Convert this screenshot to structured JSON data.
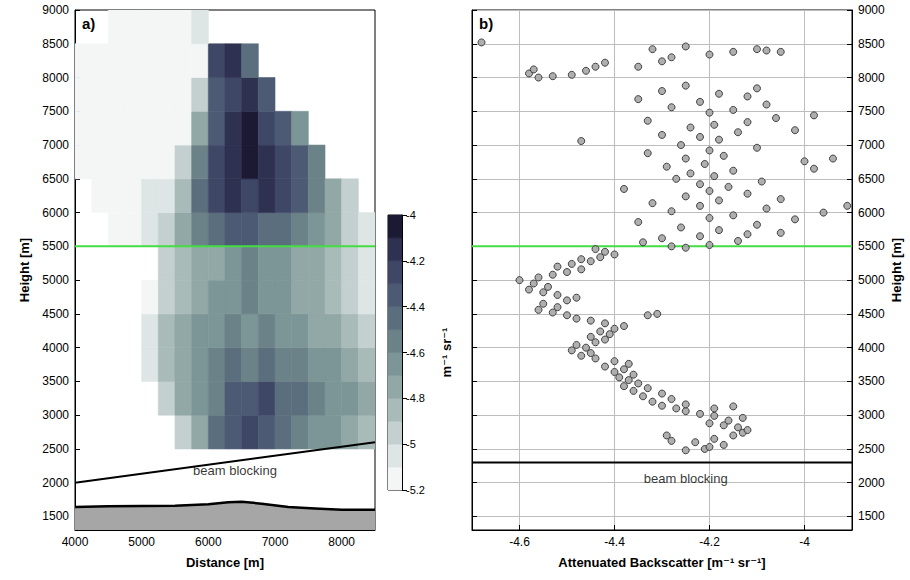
{
  "chart_data": [
    {
      "type": "heatmap",
      "panel_label": "a)",
      "x_label": "Distance [m]",
      "y_label": "Height [m]",
      "xlim": [
        4000,
        8500
      ],
      "xticks": [
        4000,
        5000,
        6000,
        7000,
        8000
      ],
      "ylim": [
        1300,
        9000
      ],
      "yticks": [
        1500,
        2000,
        2500,
        3000,
        3500,
        4000,
        4500,
        5000,
        5500,
        6000,
        6500,
        7000,
        7500,
        8000,
        8500,
        9000
      ],
      "grid": false,
      "cells": {
        "x_edges": [
          4000,
          4250,
          4500,
          4750,
          5000,
          5250,
          5500,
          5750,
          6000,
          6250,
          6500,
          6750,
          7000,
          7250,
          7500,
          7750,
          8000,
          8250,
          8500
        ],
        "y_edges": [
          2500,
          3000,
          3500,
          4000,
          4500,
          5000,
          5500,
          6000,
          6500,
          7000,
          7500,
          8000,
          8500,
          9000
        ],
        "values": [
          [
            null,
            null,
            null,
            null,
            null,
            null,
            -5.0,
            -4.8,
            -4.5,
            -4.4,
            -4.3,
            -4.4,
            -4.5,
            -4.6,
            -4.7,
            -4.7,
            -4.8,
            -4.9
          ],
          [
            null,
            null,
            null,
            null,
            null,
            -5.0,
            -4.8,
            -4.7,
            -4.6,
            -4.4,
            -4.4,
            -4.3,
            -4.5,
            -4.5,
            -4.6,
            -4.7,
            -4.7,
            -4.8
          ],
          [
            null,
            null,
            null,
            null,
            -5.1,
            -4.9,
            -4.8,
            -4.7,
            -4.6,
            -4.5,
            -4.6,
            -4.5,
            -4.6,
            -4.6,
            -4.7,
            -4.7,
            -4.8,
            -4.9
          ],
          [
            null,
            null,
            null,
            null,
            -5.1,
            -4.9,
            -4.8,
            -4.7,
            -4.7,
            -4.6,
            -4.7,
            -4.6,
            -4.7,
            -4.7,
            -4.8,
            -4.8,
            -4.9,
            -5.0
          ],
          [
            null,
            null,
            null,
            null,
            -5.2,
            -5.0,
            -4.9,
            -4.8,
            -4.7,
            -4.7,
            -4.6,
            -4.7,
            -4.7,
            -4.8,
            -4.8,
            -4.9,
            -5.0,
            -5.1
          ],
          [
            null,
            null,
            null,
            null,
            null,
            -5.0,
            -4.9,
            -4.8,
            -4.8,
            -4.7,
            -4.6,
            -4.7,
            -4.7,
            -4.8,
            -4.8,
            -4.9,
            -5.0,
            -5.1
          ],
          [
            null,
            null,
            -5.2,
            -5.2,
            -5.1,
            -5.0,
            -4.8,
            -4.6,
            -4.5,
            -4.4,
            -4.4,
            -4.5,
            -4.5,
            -4.6,
            -4.7,
            -4.8,
            -5.0,
            -5.1
          ],
          [
            null,
            -5.2,
            -5.2,
            -5.2,
            -5.1,
            -5.1,
            -4.9,
            -4.5,
            -4.3,
            -4.2,
            -4.3,
            -4.2,
            -4.3,
            -4.4,
            -4.6,
            -4.8,
            -5.0,
            null
          ],
          [
            -5.2,
            -5.2,
            -5.2,
            -5.2,
            -5.2,
            -5.2,
            -5.0,
            -4.6,
            -4.3,
            -4.2,
            -4.1,
            -4.2,
            -4.3,
            -4.4,
            -4.6,
            null,
            null,
            null
          ],
          [
            -5.2,
            -5.2,
            -5.2,
            -5.2,
            -5.2,
            -5.2,
            -5.2,
            -4.8,
            -4.4,
            -4.2,
            -4.1,
            -4.3,
            -4.4,
            -4.7,
            null,
            null,
            null,
            null
          ],
          [
            -5.2,
            -5.2,
            -5.2,
            -5.2,
            -5.2,
            -5.2,
            -5.2,
            -5.0,
            -4.4,
            -4.3,
            -4.2,
            -4.4,
            null,
            null,
            null,
            null,
            null,
            null
          ],
          [
            -5.2,
            -5.2,
            -5.2,
            -5.2,
            -5.2,
            -5.2,
            -5.2,
            -5.2,
            -4.3,
            -4.2,
            -4.5,
            null,
            null,
            null,
            null,
            null,
            null,
            null
          ],
          [
            null,
            null,
            -5.2,
            -5.2,
            -5.2,
            -5.2,
            -5.2,
            -5.1,
            null,
            null,
            null,
            null,
            null,
            null,
            null,
            null,
            null,
            null
          ]
        ]
      },
      "colorbar": {
        "label": "m⁻¹ sr⁻¹",
        "range": [
          -5.2,
          -4
        ],
        "ticks": [
          -5.2,
          -5,
          -4.8,
          -4.6,
          -4.4,
          -4.2,
          -4
        ],
        "colors": [
          "#f4f6f6",
          "#dde5e5",
          "#c3d0cf",
          "#a9bbb9",
          "#91a8a6",
          "#7c9596",
          "#6b8288",
          "#5b6e7e",
          "#4d5a74",
          "#3f4766",
          "#2e3150",
          "#1c1a33"
        ]
      },
      "terrain": {
        "x": [
          4000,
          4500,
          5000,
          5500,
          6000,
          6300,
          6500,
          6800,
          7200,
          7600,
          8000,
          8500
        ],
        "y": [
          1640,
          1650,
          1655,
          1660,
          1680,
          1710,
          1720,
          1690,
          1640,
          1620,
          1600,
          1600
        ],
        "color": "#a6a6a6"
      },
      "lines": [
        {
          "x": [
            4000,
            8500
          ],
          "y": [
            5500,
            5500
          ],
          "color": "#44dd44"
        },
        {
          "x": [
            4000,
            8500
          ],
          "y": [
            2000,
            2600
          ],
          "color": "#000000"
        }
      ],
      "annotations": [
        {
          "text": "beam blocking",
          "x": 6400,
          "y": 2180
        }
      ]
    },
    {
      "type": "scatter",
      "panel_label": "b)",
      "x_label": "Attenuated Backscatter [m⁻¹ sr⁻¹]",
      "y_label": "Height [m]",
      "xlim": [
        -4.7,
        -3.9
      ],
      "xticks": [
        -4.6,
        -4.4,
        -4.2,
        -4
      ],
      "ylim": [
        1300,
        9000
      ],
      "yticks": [
        1500,
        2000,
        2500,
        3000,
        3500,
        4000,
        4500,
        5000,
        5500,
        6000,
        6500,
        7000,
        7500,
        8000,
        8500,
        9000
      ],
      "grid": true,
      "marker": "circle",
      "color": "#a6a6a6",
      "x": [
        -4.25,
        -4.21,
        -4.2,
        -4.17,
        -4.23,
        -4.28,
        -4.19,
        -4.15,
        -4.29,
        -4.13,
        -4.12,
        -4.14,
        -4.17,
        -4.2,
        -4.16,
        -4.13,
        -4.19,
        -4.22,
        -4.25,
        -4.27,
        -4.19,
        -4.15,
        -4.3,
        -4.25,
        -4.32,
        -4.28,
        -4.34,
        -4.3,
        -4.36,
        -4.33,
        -4.38,
        -4.35,
        -4.37,
        -4.39,
        -4.36,
        -4.4,
        -4.38,
        -4.42,
        -4.37,
        -4.4,
        -4.44,
        -4.47,
        -4.45,
        -4.49,
        -4.46,
        -4.48,
        -4.44,
        -4.42,
        -4.45,
        -4.41,
        -4.43,
        -4.4,
        -4.38,
        -4.42,
        -4.45,
        -4.48,
        -4.33,
        -4.31,
        -4.5,
        -4.53,
        -4.56,
        -4.52,
        -4.55,
        -4.5,
        -4.48,
        -4.52,
        -4.55,
        -4.58,
        -4.54,
        -4.57,
        -4.6,
        -4.56,
        -4.53,
        -4.5,
        -4.47,
        -4.52,
        -4.49,
        -4.45,
        -4.47,
        -4.43,
        -4.4,
        -4.42,
        -4.44,
        -4.28,
        -4.25,
        -4.2,
        -4.34,
        -4.14,
        -4.3,
        -4.22,
        -4.12,
        -4.05,
        -4.18,
        -4.26,
        -4.1,
        -4.35,
        -4.02,
        -4.2,
        -4.15,
        -3.96,
        -4.28,
        -4.08,
        -4.22,
        -3.91,
        -4.32,
        -4.18,
        -4.05,
        -4.25,
        -4.12,
        -4.2,
        -4.38,
        -4.16,
        -4.22,
        -4.09,
        -4.27,
        -4.19,
        -4.24,
        -4.15,
        -3.98,
        -4.29,
        -4.21,
        -4,
        -4.25,
        -3.94,
        -4.17,
        -4.33,
        -4.2,
        -4.1,
        -4.26,
        -4.47,
        -4.18,
        -4.22,
        -4.3,
        -4.14,
        -4.02,
        -4.24,
        -4.19,
        -4.12,
        -4.33,
        -4.06,
        -3.98,
        -4.2,
        -4.15,
        -4.28,
        -4.08,
        -4.22,
        -4.35,
        -4.12,
        -4.18,
        -4.3,
        -4.1,
        -4.25,
        -4.56,
        -4.58,
        -4.57,
        -4.53,
        -4.49,
        -4.46,
        -4.44,
        -4.42,
        -4.35,
        -4.3,
        -4.28,
        -4.32,
        -4.25,
        -4.2,
        -4.15,
        -4.1,
        -4.08,
        -4.05,
        -4.68
      ],
      "y": [
        2480,
        2500,
        2530,
        2560,
        2600,
        2620,
        2650,
        2700,
        2700,
        2740,
        2780,
        2820,
        2850,
        2880,
        2920,
        2960,
        2990,
        3020,
        3060,
        3100,
        3100,
        3130,
        3140,
        3160,
        3200,
        3240,
        3280,
        3320,
        3360,
        3400,
        3430,
        3470,
        3520,
        3560,
        3600,
        3640,
        3680,
        3720,
        3760,
        3800,
        3840,
        3880,
        3920,
        3960,
        4000,
        4040,
        4080,
        4120,
        4160,
        4200,
        4240,
        4280,
        4320,
        4360,
        4400,
        4430,
        4480,
        4500,
        4480,
        4520,
        4560,
        4600,
        4650,
        4700,
        4740,
        4780,
        4820,
        4860,
        4900,
        4950,
        5000,
        5040,
        5080,
        5120,
        5160,
        5200,
        5240,
        5280,
        5310,
        5340,
        5380,
        5420,
        5460,
        5500,
        5480,
        5520,
        5560,
        5580,
        5620,
        5650,
        5680,
        5700,
        5740,
        5780,
        5820,
        5860,
        5900,
        5920,
        5960,
        6000,
        6020,
        6060,
        6100,
        6100,
        6140,
        6180,
        6200,
        6240,
        6280,
        6320,
        6350,
        6380,
        6420,
        6460,
        6500,
        6540,
        6580,
        6620,
        6650,
        6680,
        6720,
        6760,
        6800,
        6800,
        6840,
        6880,
        6920,
        6960,
        7000,
        7060,
        7080,
        7120,
        7150,
        7190,
        7220,
        7260,
        7300,
        7340,
        7360,
        7400,
        7440,
        7480,
        7520,
        7560,
        7600,
        7640,
        7680,
        7720,
        7760,
        7800,
        7840,
        7880,
        8000,
        8060,
        8120,
        8020,
        8040,
        8100,
        8160,
        8220,
        8160,
        8240,
        8300,
        8420,
        8460,
        8340,
        8380,
        8420,
        8400,
        8380,
        8520
      ],
      "lines": [
        {
          "x": [
            -4.7,
            -3.9
          ],
          "y": [
            5500,
            5500
          ],
          "color": "#44dd44"
        },
        {
          "x": [
            -4.7,
            -3.9
          ],
          "y": [
            2300,
            2300
          ],
          "color": "#000000"
        }
      ],
      "annotations": [
        {
          "text": "beam blocking",
          "x": -4.25,
          "y": 2060
        }
      ]
    }
  ]
}
